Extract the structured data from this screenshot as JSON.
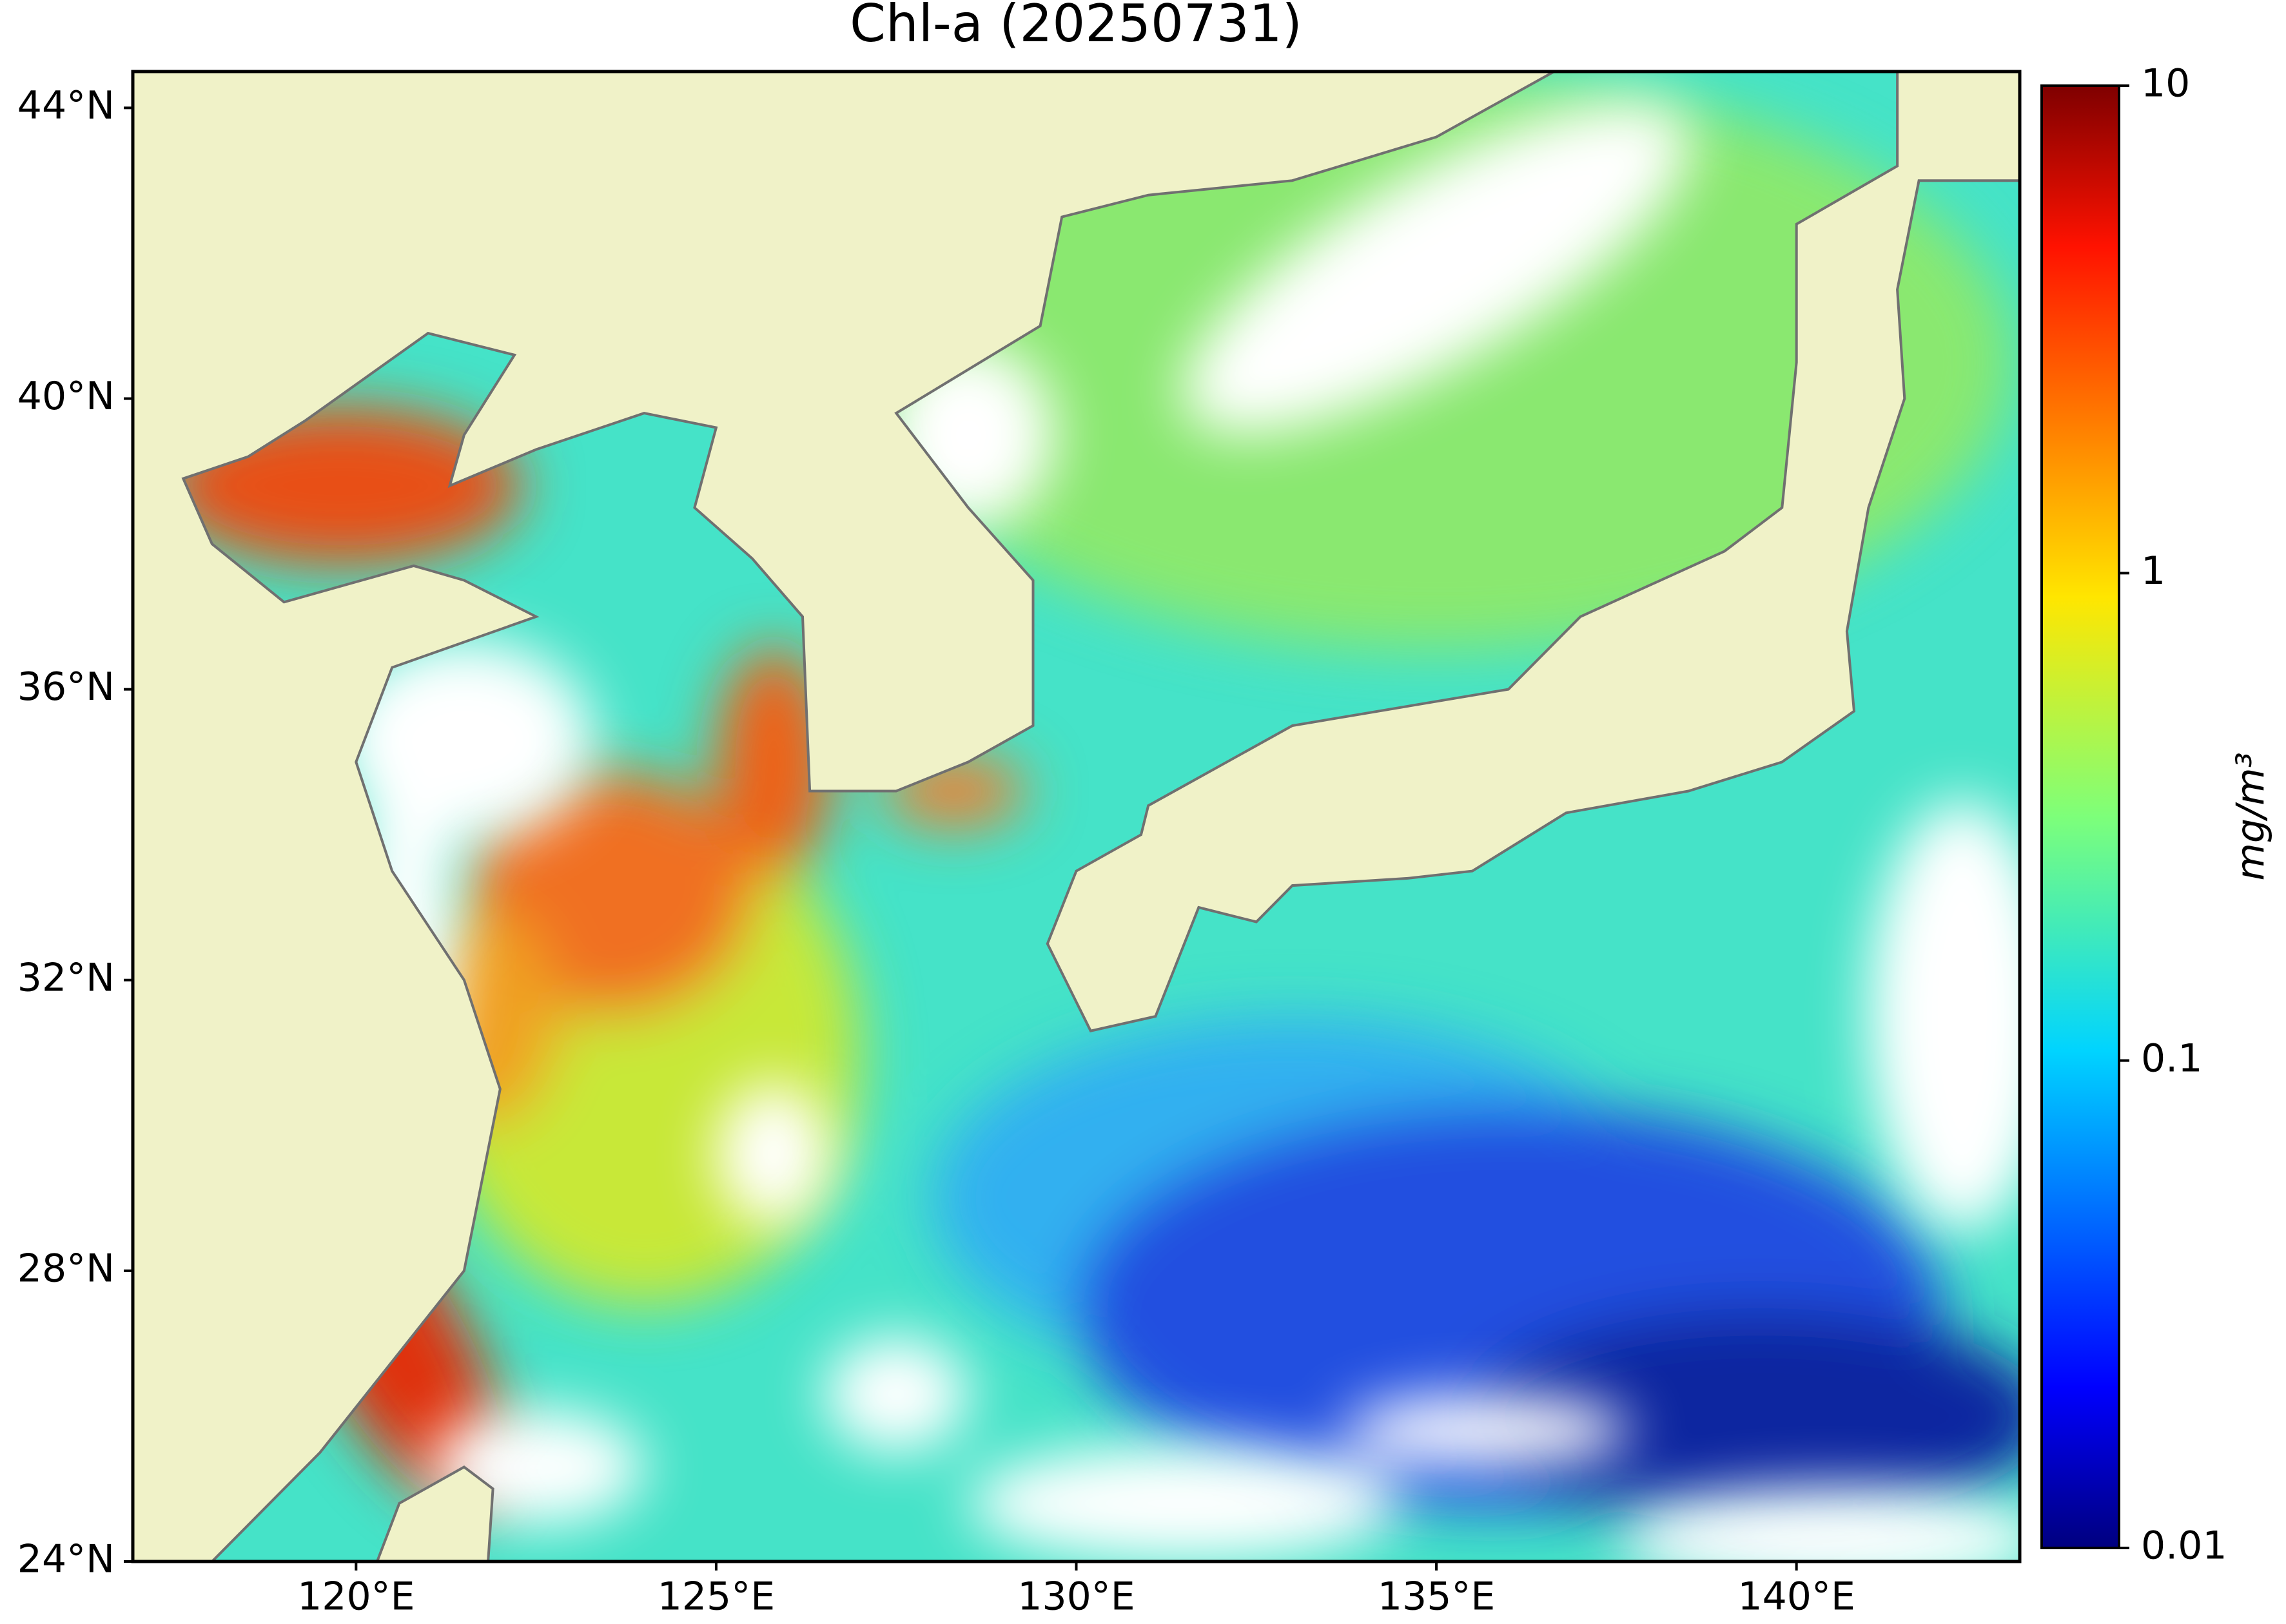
{
  "chart_data": {
    "type": "map",
    "title": "Chl-a (20250731)",
    "xlim": [
      116.9,
      143.1
    ],
    "ylim": [
      24,
      44.5
    ],
    "xticks": [
      {
        "value": 120,
        "label": "120°E"
      },
      {
        "value": 125,
        "label": "125°E"
      },
      {
        "value": 130,
        "label": "130°E"
      },
      {
        "value": 135,
        "label": "135°E"
      },
      {
        "value": 140,
        "label": "140°E"
      }
    ],
    "yticks": [
      {
        "value": 24,
        "label": "24°N"
      },
      {
        "value": 28,
        "label": "28°N"
      },
      {
        "value": 32,
        "label": "32°N"
      },
      {
        "value": 36,
        "label": "36°N"
      },
      {
        "value": 40,
        "label": "40°N"
      },
      {
        "value": 44,
        "label": "44°N"
      }
    ],
    "colorbar": {
      "label": "mg/m³",
      "scale": "log",
      "colormap": "jet",
      "lim": [
        0.01,
        10
      ],
      "ticks": [
        0.01,
        0.1,
        1,
        10
      ]
    }
  }
}
